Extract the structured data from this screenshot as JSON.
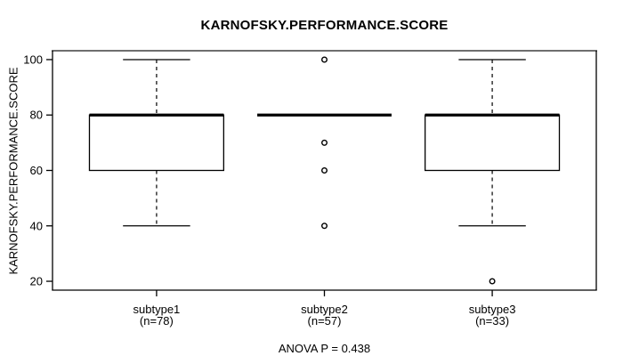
{
  "chart_data": {
    "type": "box",
    "title": "KARNOFSKY.PERFORMANCE.SCORE",
    "ylabel": "KARNOFSKY.PERFORMANCE.SCORE",
    "xlabel": "",
    "footnote": "ANOVA P = 0.438",
    "ylim": [
      20,
      100
    ],
    "yticks": [
      20,
      40,
      60,
      80,
      100
    ],
    "grid": false,
    "legend": false,
    "groups": [
      {
        "label": "subtype1",
        "sublabel": "(n=78)",
        "n": 78,
        "whisker_low": 40,
        "q1": 60,
        "median": 80,
        "q3": 80,
        "whisker_high": 100,
        "outliers": []
      },
      {
        "label": "subtype2",
        "sublabel": "(n=57)",
        "n": 57,
        "whisker_low": 80,
        "q1": 80,
        "median": 80,
        "q3": 80,
        "whisker_high": 80,
        "outliers": [
          100,
          70,
          60,
          40
        ]
      },
      {
        "label": "subtype3",
        "sublabel": "(n=33)",
        "n": 33,
        "whisker_low": 40,
        "q1": 60,
        "median": 80,
        "q3": 80,
        "whisker_high": 100,
        "outliers": [
          20
        ]
      }
    ]
  },
  "colors": {
    "line": "#000000",
    "frame_top": "#6e6e6e",
    "box_fill": "#ffffff",
    "background": "#ffffff",
    "text": "#000000"
  }
}
